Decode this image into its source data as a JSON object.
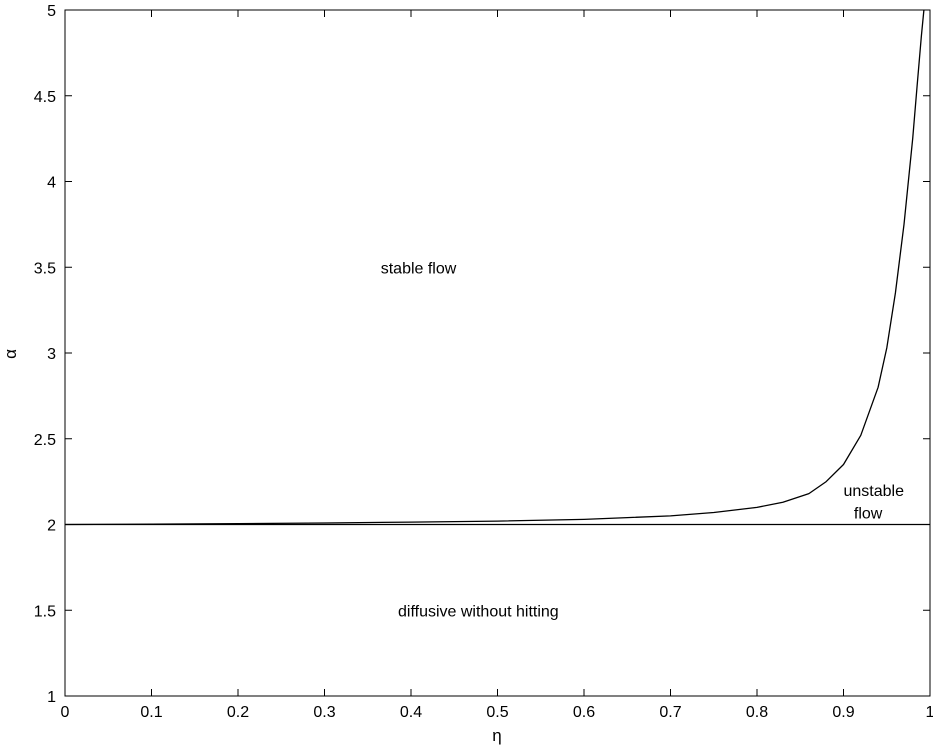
{
  "chart_data": {
    "type": "line",
    "title": "",
    "xlabel": "η",
    "ylabel": "α",
    "xlim": [
      0,
      1
    ],
    "ylim": [
      1,
      5
    ],
    "grid": false,
    "x_ticks": [
      0,
      0.1,
      0.2,
      0.3,
      0.4,
      0.5,
      0.6,
      0.7,
      0.8,
      0.9,
      1
    ],
    "x_tick_labels": [
      "0",
      "0.1",
      "0.2",
      "0.3",
      "0.4",
      "0.5",
      "0.6",
      "0.7",
      "0.8",
      "0.9",
      "1"
    ],
    "y_ticks": [
      1,
      1.5,
      2,
      2.5,
      3,
      3.5,
      4,
      4.5,
      5
    ],
    "y_tick_labels": [
      "1",
      "1.5",
      "2",
      "2.5",
      "3",
      "3.5",
      "4",
      "4.5",
      "5"
    ],
    "series": [
      {
        "x": [
          0,
          0.1,
          0.2,
          0.3,
          0.4,
          0.5,
          0.6,
          0.65,
          0.7,
          0.75,
          0.8,
          0.83,
          0.86,
          0.88,
          0.9,
          0.92,
          0.94,
          0.95,
          0.96,
          0.97,
          0.98,
          0.985,
          0.99,
          0.993
        ],
        "y": [
          2.0,
          2.002,
          2.005,
          2.009,
          2.014,
          2.02,
          2.03,
          2.04,
          2.05,
          2.07,
          2.1,
          2.13,
          2.18,
          2.25,
          2.35,
          2.52,
          2.8,
          3.03,
          3.35,
          3.75,
          4.25,
          4.55,
          4.85,
          5.0
        ],
        "color": "#000000"
      },
      {
        "x": [
          0,
          1
        ],
        "y": [
          2,
          2
        ],
        "color": "#000000"
      }
    ],
    "annotations": [
      {
        "text": "stable flow",
        "x": 0.365,
        "y": 3.5
      },
      {
        "text": "unstable",
        "x": 0.9,
        "y": 2.2
      },
      {
        "text": "flow",
        "x": 0.912,
        "y": 2.07
      },
      {
        "text": "diffusive without hitting",
        "x": 0.385,
        "y": 1.5
      }
    ]
  }
}
